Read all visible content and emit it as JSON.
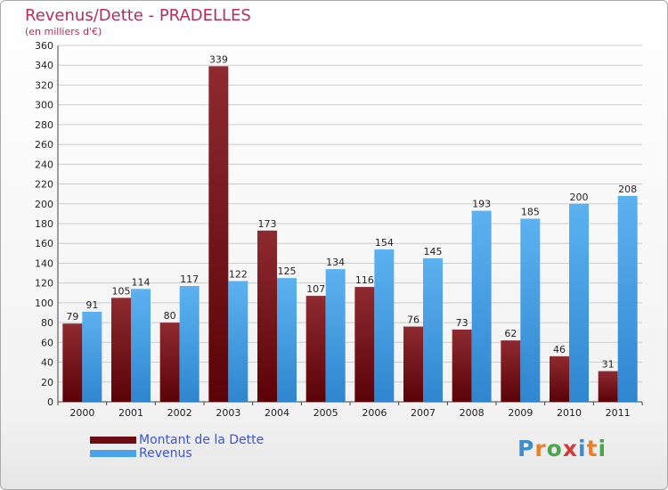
{
  "header": {
    "title": "Revenus/Dette - PRADELLES",
    "subtitle": "(en milliers d'€)"
  },
  "legend": {
    "dette_label": "Montant de la Dette",
    "revenus_label": "Revenus"
  },
  "logo": {
    "letters": [
      "P",
      "r",
      "o",
      "x",
      "i",
      "t",
      "i"
    ],
    "colors": [
      "#3b8fd1",
      "#e8822a",
      "#4aa84a",
      "#d33a3a",
      "#3b8fd1",
      "#e8822a",
      "#4aa84a"
    ]
  },
  "colors": {
    "dette": "#7a1a1f",
    "revenus": "#4aa3e8"
  },
  "chart_data": {
    "type": "bar",
    "title": "Revenus/Dette - PRADELLES",
    "ylabel": "(en milliers d'€)",
    "xlabel": "",
    "ylim": [
      0,
      360
    ],
    "yticks": [
      0,
      20,
      40,
      60,
      80,
      100,
      120,
      140,
      160,
      180,
      200,
      220,
      240,
      260,
      280,
      300,
      320,
      340,
      360
    ],
    "grid": true,
    "legend_position": "bottom-left",
    "categories": [
      "2000",
      "2001",
      "2002",
      "2003",
      "2004",
      "2005",
      "2006",
      "2007",
      "2008",
      "2009",
      "2010",
      "2011"
    ],
    "series": [
      {
        "name": "Montant de la Dette",
        "values": [
          79,
          105,
          80,
          339,
          173,
          107,
          116,
          76,
          73,
          62,
          46,
          31
        ]
      },
      {
        "name": "Revenus",
        "values": [
          91,
          114,
          117,
          122,
          125,
          134,
          154,
          145,
          193,
          185,
          200,
          208
        ]
      }
    ]
  }
}
